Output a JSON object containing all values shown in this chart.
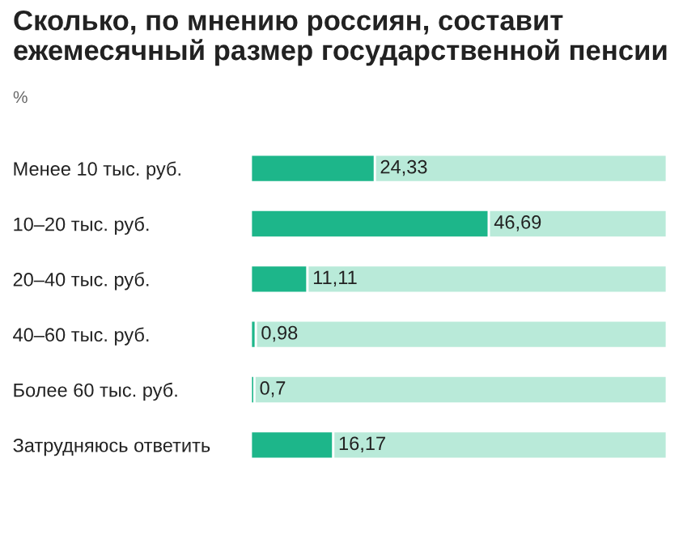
{
  "chart_data": {
    "type": "bar",
    "orientation": "horizontal",
    "stacked": true,
    "title": "Сколько, по мнению россиян, составит\nежемесячный размер государственной пенсии",
    "subtitle": "%",
    "categories": [
      "Менее 10 тыс. руб.",
      "10–20 тыс. руб.",
      "20–40 тыс. руб.",
      "40–60 тыс. руб.",
      "Более 60 тыс. руб.",
      "Затрудняюсь ответить"
    ],
    "series": [
      {
        "color": "#1db68a",
        "values": [
          24.33,
          46.69,
          11.11,
          0.98,
          0.7,
          16.17
        ],
        "value_labels": [
          "24,33",
          "46,69",
          "11,11",
          "0,98",
          "0,7",
          "16,17"
        ]
      },
      {
        "color": "#b9ead9",
        "values": [
          57.27,
          34.91,
          70.49,
          80.62,
          80.9,
          65.43
        ]
      }
    ],
    "xlim": [
      0,
      81.6
    ],
    "tick_labels": "y"
  }
}
